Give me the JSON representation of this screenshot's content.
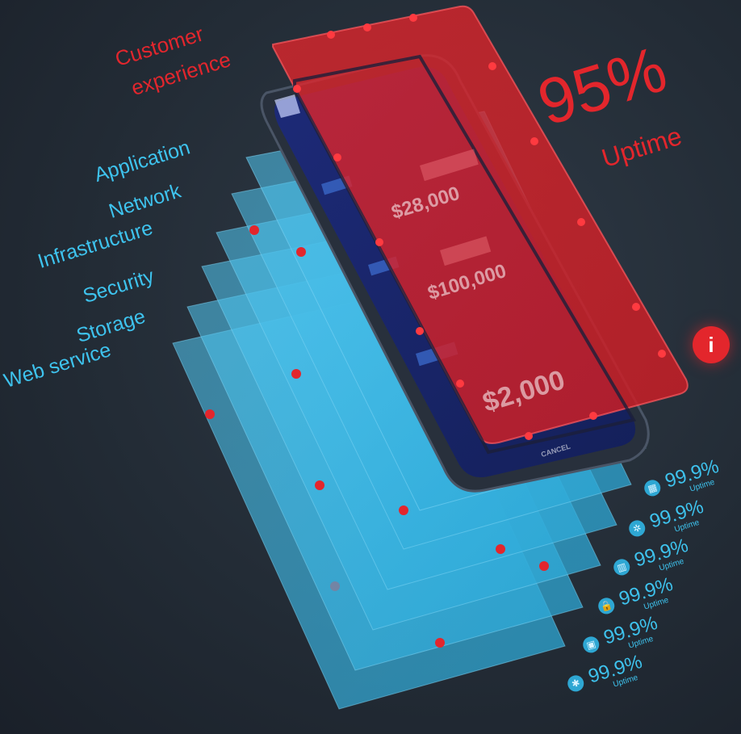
{
  "layers": {
    "customer_experience": {
      "line1": "Customer",
      "line2": "experience"
    },
    "application": "Application",
    "network": "Network",
    "infrastructure": "Infrastructure",
    "security": "Security",
    "storage": "Storage",
    "web_service": "Web service"
  },
  "headline": {
    "percent": "95%",
    "label": "Uptime"
  },
  "stats": [
    {
      "icon": "application-icon",
      "percent": "99.9%",
      "label": "Uptime"
    },
    {
      "icon": "network-icon",
      "percent": "99.9%",
      "label": "Uptime"
    },
    {
      "icon": "infrastructure-icon",
      "percent": "99.9%",
      "label": "Uptime"
    },
    {
      "icon": "lock-icon",
      "percent": "99.9%",
      "label": "Uptime"
    },
    {
      "icon": "storage-icon",
      "percent": "99.9%",
      "label": "Uptime"
    },
    {
      "icon": "web-service-icon",
      "percent": "99.9%",
      "label": "Uptime"
    }
  ],
  "phone": {
    "amount_1": "$28,000",
    "amount_2": "$100,000",
    "amount_3": "$2,000",
    "cancel": "CANCEL"
  },
  "colors": {
    "accent_red": "#e3262c",
    "accent_blue": "#3ec3ee",
    "background": "#232c36"
  }
}
